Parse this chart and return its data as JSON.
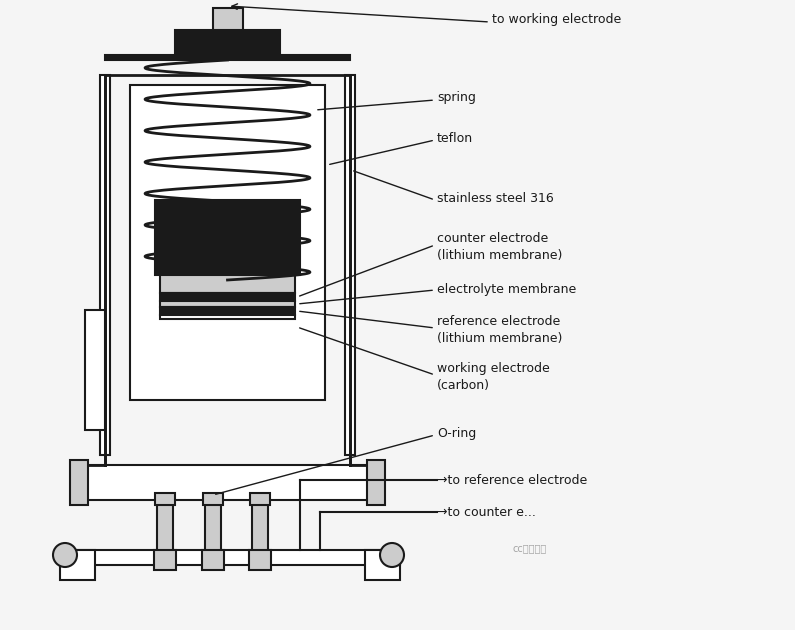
{
  "bg_color": "#f5f5f5",
  "line_color": "#1a1a1a",
  "dark_fill": "#1a1a1a",
  "gray_fill": "#888888",
  "light_gray": "#cccccc",
  "white_fill": "#ffffff",
  "labels": {
    "working_electrode_top": "to working electrode",
    "spring": "spring",
    "teflon": "teflon",
    "stainless_steel": "stainless steel 316",
    "counter_electrode": "counter electrode\n(lithium membrane)",
    "electrolyte_membrane": "electrolyte membrane",
    "reference_electrode": "reference electrode\n(lithium membrane)",
    "working_electrode": "working electrode\n(carbon)",
    "o_ring": "O-ring",
    "to_reference": "→to reference electrode",
    "to_counter": "→to counter e..."
  },
  "font_size": 9,
  "title_font_size": 10
}
